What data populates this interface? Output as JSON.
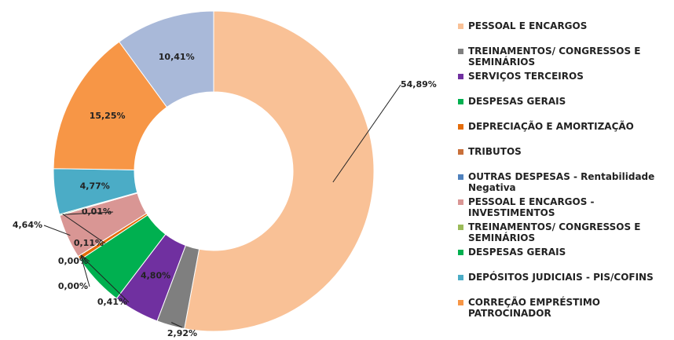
{
  "chart_data": {
    "type": "donut",
    "categories": [
      "PESSOAL E ENCARGOS",
      "TREINAMENTOS/ CONGRESSOS E SEMINÁRIOS",
      "SERVIÇOS TERCEIROS",
      "DESPESAS GERAIS",
      "DEPRECIAÇÃO E AMORTIZAÇÃO",
      "TRIBUTOS",
      "OUTRAS DESPESAS - Rentabilidade Negativa",
      "PESSOAL E ENCARGOS - INVESTIMENTOS",
      "TREINAMENTOS/ CONGRESSOS E SEMINÁRIOS",
      "DESPESAS GERAIS",
      "DEPÓSITOS JUDICIAIS - PIS/COFINS",
      "CORREÇÃO EMPRÉSTIMO PATROCINADOR",
      null
    ],
    "values": [
      54.89,
      2.92,
      4.8,
      5.5,
      0.41,
      0.0,
      0.0,
      4.64,
      0.01,
      0.11,
      4.77,
      15.25,
      10.41
    ],
    "value_labels": [
      "54,89%",
      "2,92%",
      "4,80%",
      null,
      "0,41%",
      "0,00%",
      "0,00%",
      "4,64%",
      "0,01%",
      "0,11%",
      "4,77%",
      "15,25%",
      "10,41%"
    ],
    "colors": [
      "#f9c196",
      "#7f7f7f",
      "#7030a0",
      "#00b050",
      "#e46c0a",
      "#c9703a",
      "#4f81bd",
      "#d99694",
      "#9bbb59",
      "#00b050",
      "#4bacc6",
      "#f79646",
      "#a9b9d9"
    ]
  }
}
